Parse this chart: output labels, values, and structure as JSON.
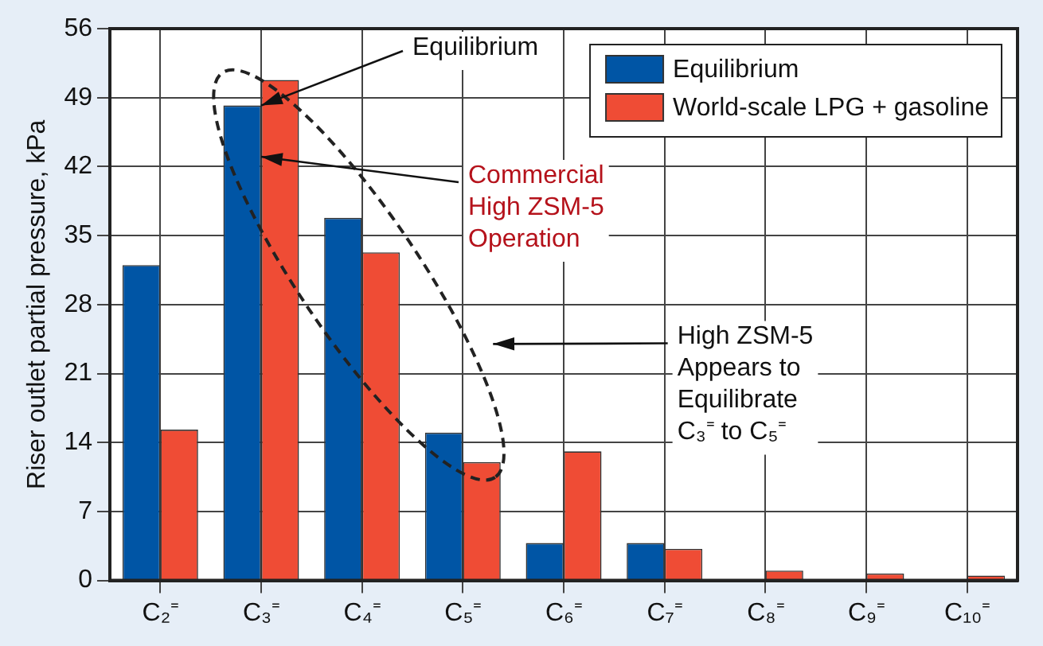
{
  "chart_data": {
    "type": "bar",
    "ylabel": "Riser outlet partial pressure, kPa",
    "categories": [
      "C₂⁼",
      "C₃⁼",
      "C₄⁼",
      "C₅⁼",
      "C₆⁼",
      "C₇⁼",
      "C₈⁼",
      "C₉⁼",
      "C₁₀⁼"
    ],
    "series": [
      {
        "name": "Equilibrium",
        "color": "#0055a5",
        "values": [
          32,
          48.2,
          36.8,
          15,
          3.8,
          3.8,
          0,
          0,
          0
        ]
      },
      {
        "name": "World-scale LPG + gasoline",
        "color": "#ef4c35",
        "values": [
          15.3,
          50.8,
          33.3,
          12,
          13.1,
          3.2,
          1,
          0.7,
          0.5
        ]
      }
    ],
    "ylim": [
      0,
      56
    ],
    "yticks": [
      0,
      7,
      14,
      21,
      28,
      35,
      42,
      49,
      56
    ],
    "grid": true,
    "legend": "top right",
    "annotations": [
      {
        "text": "Equilibrium",
        "x": "C₃⁼",
        "y": 48.2
      },
      {
        "text": "Commercial\nHigh ZSM-5\nOperation",
        "x": "C₃⁼",
        "y": 43
      },
      "High ZSM-5\nAppears to\nEquilibrate\nC₃⁼ to C₅⁼"
    ]
  }
}
